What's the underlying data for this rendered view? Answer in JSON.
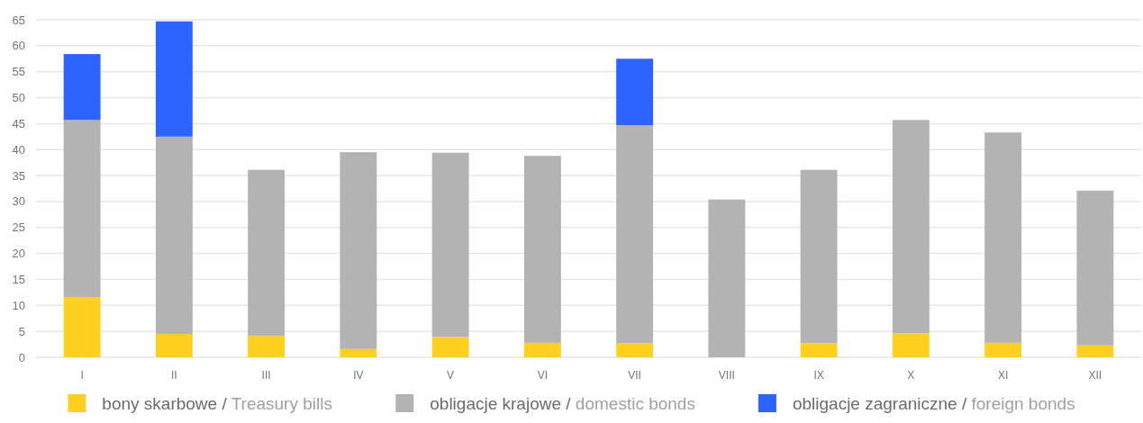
{
  "chart_data": {
    "type": "bar",
    "stacked": true,
    "categories": [
      "I",
      "II",
      "III",
      "IV",
      "V",
      "VI",
      "VII",
      "VIII",
      "IX",
      "X",
      "XI",
      "XII"
    ],
    "series": [
      {
        "name": "bony skarbowe / Treasury bills",
        "color": "#ffd020",
        "values": [
          11.6,
          4.5,
          4.1,
          1.6,
          3.9,
          2.8,
          2.7,
          0,
          2.7,
          4.6,
          2.8,
          2.3
        ]
      },
      {
        "name": "obligacje krajowe / domestic bonds",
        "color": "#b3b3b3",
        "values": [
          34.1,
          38.0,
          32.0,
          37.9,
          35.5,
          36.0,
          42.0,
          30.4,
          33.4,
          41.1,
          40.5,
          29.8
        ]
      },
      {
        "name": "obligacje zagraniczne / foreign bonds",
        "color": "#2d64ff",
        "values": [
          12.7,
          22.2,
          0,
          0,
          0,
          0,
          12.8,
          0,
          0,
          0,
          0,
          0
        ]
      }
    ],
    "ylim": [
      0,
      65
    ],
    "yticks": [
      0,
      5,
      10,
      15,
      20,
      25,
      30,
      35,
      40,
      45,
      50,
      55,
      60,
      65
    ],
    "grid": "y",
    "legend": "bottom"
  }
}
